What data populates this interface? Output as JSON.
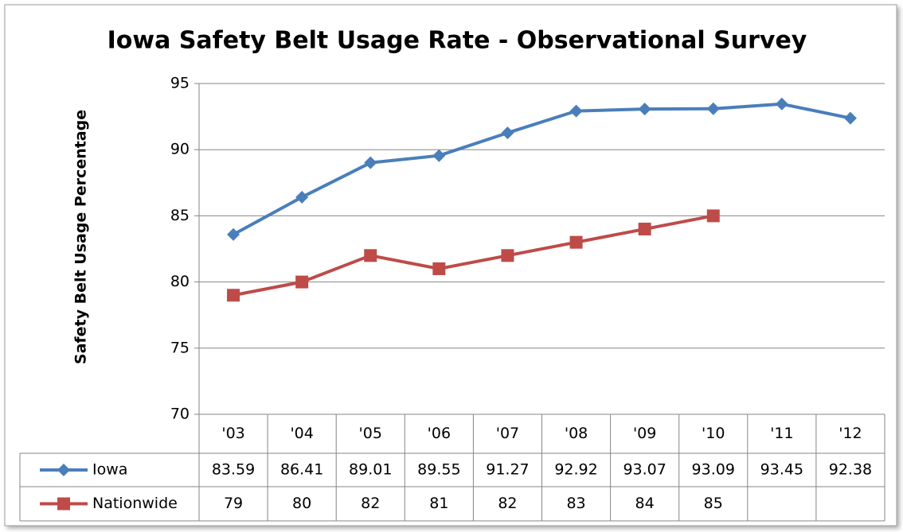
{
  "chart_data": {
    "type": "line",
    "title": "Iowa Safety Belt Usage Rate - Observational Survey",
    "y_label": "Safety Belt Usage Percentage",
    "categories": [
      "'03",
      "'04",
      "'05",
      "'06",
      "'07",
      "'08",
      "'09",
      "'10",
      "'11",
      "'12"
    ],
    "series": [
      {
        "name": "Iowa",
        "color": "#4a7ebb",
        "marker": "diamond",
        "values": [
          83.59,
          86.41,
          89.01,
          89.55,
          91.27,
          92.92,
          93.07,
          93.09,
          93.45,
          92.38
        ]
      },
      {
        "name": "Nationwide",
        "color": "#be4b48",
        "marker": "square",
        "values": [
          79,
          80,
          82,
          81,
          82,
          83,
          84,
          85,
          null,
          null
        ]
      }
    ],
    "ylim": [
      70,
      95
    ],
    "yticks": [
      70,
      75,
      80,
      85,
      90,
      95
    ],
    "grid": true,
    "data_table": true
  }
}
